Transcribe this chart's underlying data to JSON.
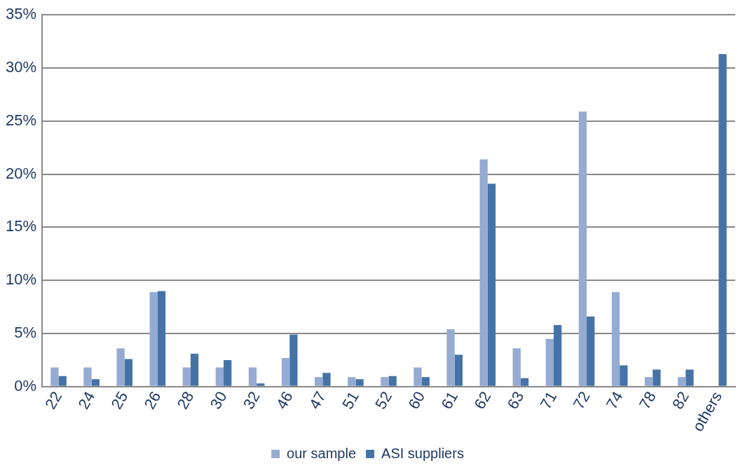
{
  "chart_data": {
    "type": "bar",
    "categories": [
      "22",
      "24",
      "25",
      "26",
      "28",
      "30",
      "32",
      "46",
      "47",
      "51",
      "52",
      "60",
      "61",
      "62",
      "63",
      "71",
      "72",
      "74",
      "78",
      "82",
      "others"
    ],
    "series": [
      {
        "name": "our sample",
        "color": "#95abd2",
        "values": [
          1.8,
          1.8,
          3.6,
          8.9,
          1.8,
          1.8,
          1.8,
          2.7,
          0.9,
          0.9,
          0.9,
          1.8,
          5.4,
          21.4,
          3.6,
          4.5,
          25.9,
          8.9,
          0.9,
          0.9,
          null
        ]
      },
      {
        "name": "ASI suppliers",
        "color": "#4573a7",
        "values": [
          1.0,
          0.7,
          2.6,
          9.0,
          3.1,
          2.5,
          0.3,
          4.9,
          1.3,
          0.7,
          1.0,
          0.9,
          3.0,
          19.1,
          0.8,
          5.8,
          6.6,
          2.0,
          1.6,
          1.6,
          31.3
        ]
      }
    ],
    "ylim": [
      0,
      35
    ],
    "yticks": [
      {
        "value": 0,
        "label": "0%"
      },
      {
        "value": 5,
        "label": "5%"
      },
      {
        "value": 10,
        "label": "10%"
      },
      {
        "value": 15,
        "label": "15%"
      },
      {
        "value": 20,
        "label": "20%"
      },
      {
        "value": 25,
        "label": "25%"
      },
      {
        "value": 30,
        "label": "30%"
      },
      {
        "value": 35,
        "label": "35%"
      }
    ],
    "grid": "y",
    "legend": "bottom"
  }
}
